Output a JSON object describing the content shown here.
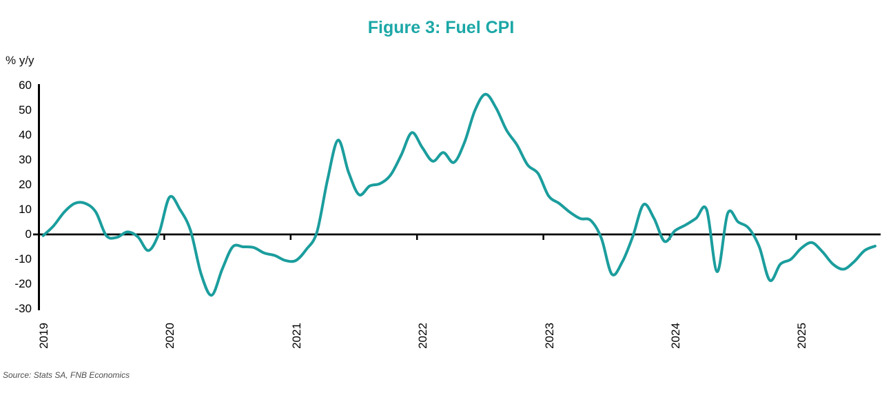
{
  "chart_data": {
    "type": "line",
    "title": "Figure 3: Fuel CPI",
    "y_axis_unit": "% y/y",
    "source_note": "Source: Stats SA, FNB Economics",
    "grid": false,
    "legend": false,
    "ylim": [
      -30,
      60
    ],
    "y_ticks": [
      60,
      50,
      40,
      30,
      20,
      10,
      0,
      -10,
      -20,
      -30
    ],
    "x_tick_labels": [
      "2019",
      "2020",
      "2021",
      "2022",
      "2023",
      "2024",
      "2025"
    ],
    "colors": {
      "line": "#1B9D9D",
      "title": "#1CA7A7",
      "axis": "#000000",
      "tick_text": "#000000",
      "source_text": "#4D4D4D"
    },
    "series": [
      {
        "name": "Fuel CPI, % y/y",
        "x": [
          "2019-01",
          "2019-02",
          "2019-03",
          "2019-04",
          "2019-05",
          "2019-06",
          "2019-07",
          "2019-08",
          "2019-09",
          "2019-10",
          "2019-11",
          "2019-12",
          "2020-01",
          "2020-02",
          "2020-03",
          "2020-04",
          "2020-05",
          "2020-06",
          "2020-07",
          "2020-08",
          "2020-09",
          "2020-10",
          "2020-11",
          "2020-12",
          "2021-01",
          "2021-02",
          "2021-03",
          "2021-04",
          "2021-05",
          "2021-06",
          "2021-07",
          "2021-08",
          "2021-09",
          "2021-10",
          "2021-11",
          "2021-12",
          "2022-01",
          "2022-02",
          "2022-03",
          "2022-04",
          "2022-05",
          "2022-06",
          "2022-07",
          "2022-08",
          "2022-09",
          "2022-10",
          "2022-11",
          "2022-12",
          "2023-01",
          "2023-02",
          "2023-03",
          "2023-04",
          "2023-05",
          "2023-06",
          "2023-07",
          "2023-08",
          "2023-09",
          "2023-10",
          "2023-11",
          "2023-12",
          "2024-01",
          "2024-02",
          "2024-03",
          "2024-04",
          "2024-05",
          "2024-06",
          "2024-07",
          "2024-08",
          "2024-09",
          "2024-10",
          "2024-11",
          "2024-12",
          "2025-01",
          "2025-02",
          "2025-03",
          "2025-04",
          "2025-05",
          "2025-06",
          "2025-07",
          "2025-08"
        ],
        "values": [
          -0.5,
          3.5,
          9,
          12.5,
          12.5,
          9,
          -0.5,
          -1.2,
          1,
          -1,
          -6.5,
          0.5,
          15,
          10,
          1.5,
          -16,
          -24.5,
          -14,
          -5,
          -5,
          -5.3,
          -7.5,
          -8.5,
          -10.5,
          -10.5,
          -6,
          1,
          22,
          38,
          25,
          16,
          19.5,
          20.5,
          24,
          32,
          41,
          35,
          29.5,
          33,
          29,
          37,
          50,
          56.5,
          51,
          42,
          36,
          28,
          24.5,
          15.5,
          12.5,
          9,
          6.4,
          5.6,
          -1.5,
          -16,
          -11,
          -0.7,
          12,
          6.5,
          -2.8,
          1.5,
          3.8,
          6.5,
          10,
          -15,
          8.5,
          5,
          2.5,
          -5,
          -18.5,
          -12,
          -10,
          -5.5,
          -3.3,
          -7,
          -12,
          -14,
          -11,
          -6.5,
          -4.7
        ]
      }
    ]
  }
}
